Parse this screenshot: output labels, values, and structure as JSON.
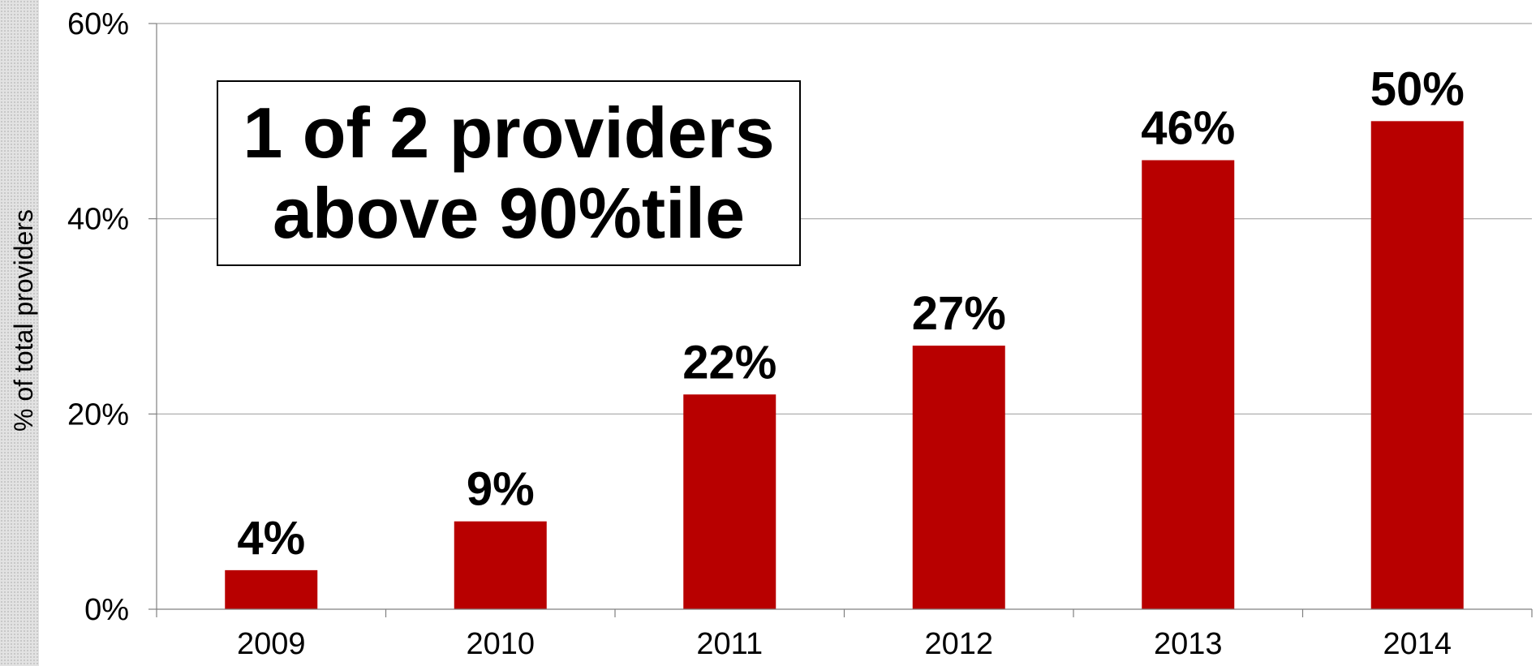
{
  "chart_data": {
    "type": "bar",
    "categories": [
      "2009",
      "2010",
      "2011",
      "2012",
      "2013",
      "2014"
    ],
    "values": [
      4,
      9,
      22,
      27,
      46,
      50
    ],
    "data_labels": [
      "4%",
      "9%",
      "22%",
      "27%",
      "46%",
      "50%"
    ],
    "ylabel": "% of  total providers",
    "ylim": [
      0,
      60
    ],
    "yticks": [
      0,
      20,
      40,
      60
    ],
    "ytick_labels": [
      "0%",
      "20%",
      "40%",
      "60%"
    ],
    "grid": true,
    "bar_color": "#b80000",
    "gridline_color": "#a6a6a6",
    "annotation": {
      "line1": "1 of 2 providers",
      "line2": "above 90%tile"
    }
  }
}
